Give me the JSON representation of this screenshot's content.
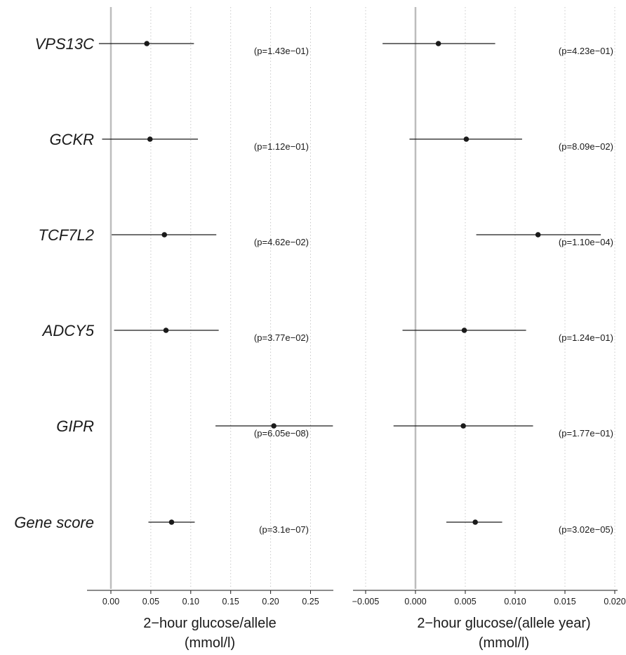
{
  "chart_data": [
    {
      "type": "scatter",
      "subtype": "forest-plot",
      "xlabel_line1": "2−hour glucose/allele",
      "xlabel_line2": "(mmol/l)",
      "xlim": [
        -0.03,
        0.25
      ],
      "ticks": [
        0.0,
        0.05,
        0.1,
        0.15,
        0.2,
        0.25
      ],
      "tick_labels": [
        "0.00",
        "0.05",
        "0.10",
        "0.15",
        "0.20",
        "0.25"
      ],
      "reference_line": 0,
      "grid": "vertical dotted",
      "rows": [
        {
          "label": "VPS13C",
          "estimate": 0.045,
          "lower": -0.015,
          "upper": 0.104,
          "p_label": "(p=1.43e−01)"
        },
        {
          "label": "GCKR",
          "estimate": 0.049,
          "lower": -0.011,
          "upper": 0.109,
          "p_label": "(p=1.12e−01)"
        },
        {
          "label": "TCF7L2",
          "estimate": 0.067,
          "lower": 0.001,
          "upper": 0.132,
          "p_label": "(p=4.62e−02)"
        },
        {
          "label": "ADCY5",
          "estimate": 0.069,
          "lower": 0.004,
          "upper": 0.135,
          "p_label": "(p=3.77e−02)"
        },
        {
          "label": "GIPR",
          "estimate": 0.204,
          "lower": 0.131,
          "upper": 0.278,
          "p_label": "(p=6.05e−08)"
        },
        {
          "label": "Gene score",
          "estimate": 0.076,
          "lower": 0.047,
          "upper": 0.105,
          "p_label": "(p=3.1e−07)"
        }
      ]
    },
    {
      "type": "scatter",
      "subtype": "forest-plot",
      "xlabel_line1": "2−hour glucose/(allele year)",
      "xlabel_line2": "(mmol/l)",
      "xlim": [
        -0.006,
        0.02
      ],
      "ticks": [
        -0.005,
        0.0,
        0.005,
        0.01,
        0.015,
        0.02
      ],
      "tick_labels": [
        "−0.005",
        "0.000",
        "0.005",
        "0.010",
        "0.015",
        "0.020"
      ],
      "reference_line": 0,
      "grid": "vertical dotted",
      "rows": [
        {
          "label": "VPS13C",
          "estimate": 0.0023,
          "lower": -0.0033,
          "upper": 0.008,
          "p_label": "(p=4.23e−01)"
        },
        {
          "label": "GCKR",
          "estimate": 0.0051,
          "lower": -0.0006,
          "upper": 0.0107,
          "p_label": "(p=8.09e−02)"
        },
        {
          "label": "TCF7L2",
          "estimate": 0.0123,
          "lower": 0.0061,
          "upper": 0.0186,
          "p_label": "(p=1.10e−04)"
        },
        {
          "label": "ADCY5",
          "estimate": 0.0049,
          "lower": -0.0013,
          "upper": 0.0111,
          "p_label": "(p=1.24e−01)"
        },
        {
          "label": "GIPR",
          "estimate": 0.0048,
          "lower": -0.0022,
          "upper": 0.0118,
          "p_label": "(p=1.77e−01)"
        },
        {
          "label": "Gene score",
          "estimate": 0.006,
          "lower": 0.0031,
          "upper": 0.0087,
          "p_label": "(p=3.02e−05)"
        }
      ]
    }
  ]
}
